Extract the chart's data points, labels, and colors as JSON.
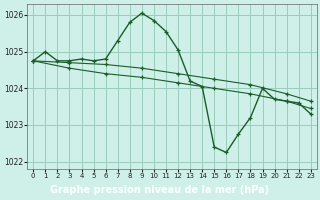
{
  "title": "Graphe pression niveau de la mer (hPa)",
  "background_color": "#cff0e8",
  "grid_color": "#99ccbb",
  "line_color": "#1a5c2a",
  "label_bg": "#2d6e3e",
  "label_fg": "#ffffff",
  "xlim": [
    -0.5,
    23.5
  ],
  "ylim": [
    1021.8,
    1026.3
  ],
  "yticks": [
    1022,
    1023,
    1024,
    1025,
    1026
  ],
  "xticks": [
    0,
    1,
    2,
    3,
    4,
    5,
    6,
    7,
    8,
    9,
    10,
    11,
    12,
    13,
    14,
    15,
    16,
    17,
    18,
    19,
    20,
    21,
    22,
    23
  ],
  "series1_x": [
    0,
    1,
    2,
    3,
    4,
    5,
    6,
    7,
    8,
    9,
    10,
    11,
    12,
    13,
    14,
    15,
    16,
    17,
    18,
    19,
    20,
    21,
    22,
    23
  ],
  "series1_y": [
    1024.75,
    1025.0,
    1024.75,
    1024.75,
    1024.8,
    1024.75,
    1024.8,
    1025.3,
    1025.8,
    1026.05,
    1025.85,
    1025.55,
    1025.05,
    1024.2,
    1024.05,
    1022.4,
    1022.25,
    1022.75,
    1023.2,
    1024.0,
    1023.7,
    1023.65,
    1023.6,
    1023.3
  ],
  "series2_x": [
    0,
    3,
    6,
    9,
    12,
    15,
    18,
    21,
    23
  ],
  "series2_y": [
    1024.75,
    1024.7,
    1024.65,
    1024.55,
    1024.4,
    1024.25,
    1024.1,
    1023.85,
    1023.65
  ],
  "series3_x": [
    0,
    3,
    6,
    9,
    12,
    15,
    18,
    21,
    23
  ],
  "series3_y": [
    1024.75,
    1024.55,
    1024.4,
    1024.3,
    1024.15,
    1024.0,
    1023.85,
    1023.65,
    1023.45
  ]
}
